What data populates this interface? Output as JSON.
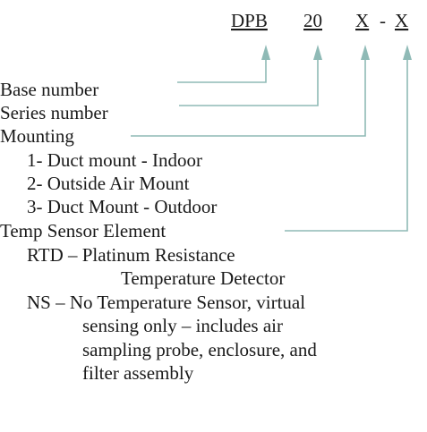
{
  "code": {
    "parts": [
      "DPB",
      "20",
      "X",
      "-",
      "X"
    ]
  },
  "fields": [
    {
      "label": "Base number"
    },
    {
      "label": "Series number"
    },
    {
      "label": "Mounting",
      "options": [
        "1- Duct mount - Indoor",
        "2- Outside Air Mount",
        "3- Duct Mount - Outdoor"
      ]
    },
    {
      "label": "Temp Sensor Element",
      "options": [
        "RTD – Platinum Resistance",
        "Temperature Detector",
        "NS – No Temperature Sensor, virtual",
        "sensing only – includes air",
        "sampling probe, enclosure, and",
        "filter assembly"
      ]
    }
  ]
}
